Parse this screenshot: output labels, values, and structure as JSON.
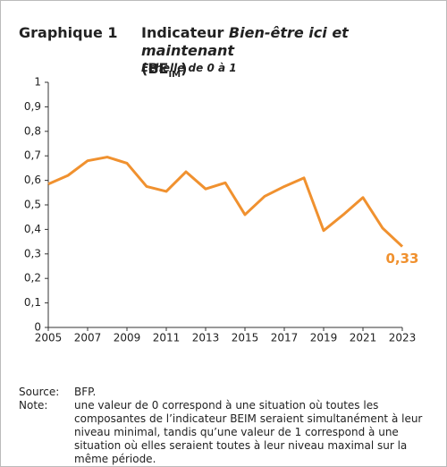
{
  "chart_data": {
    "type": "line",
    "label": "Graphique 1",
    "title_parts": [
      "Indicateur ",
      "Bien-être ici et maintenant",
      "(BE",
      "IM",
      ")"
    ],
    "subtitle": "Echelle de 0 à 1",
    "x": [
      2005,
      2006,
      2007,
      2008,
      2009,
      2010,
      2011,
      2012,
      2013,
      2014,
      2015,
      2016,
      2017,
      2018,
      2019,
      2020,
      2021,
      2022,
      2023
    ],
    "values": [
      0.585,
      0.62,
      0.68,
      0.695,
      0.67,
      0.575,
      0.555,
      0.635,
      0.565,
      0.59,
      0.46,
      0.535,
      0.575,
      0.61,
      0.395,
      0.46,
      0.53,
      0.405,
      0.33
    ],
    "value_labels": [
      null,
      null,
      null,
      null,
      null,
      null,
      null,
      null,
      null,
      null,
      null,
      null,
      null,
      null,
      null,
      null,
      null,
      null,
      "0,33"
    ],
    "color": "#f0912f",
    "xlim": [
      2005,
      2023
    ],
    "xticks": [
      2005,
      2007,
      2009,
      2011,
      2013,
      2015,
      2017,
      2019,
      2021,
      2023
    ],
    "ylim": [
      0,
      1
    ],
    "yticks": [
      0,
      {
        "value": 0.1,
        "label": "0,1"
      },
      {
        "value": 0.2,
        "label": "0,2"
      },
      {
        "value": 0.3,
        "label": "0,3"
      },
      {
        "value": 0.4,
        "label": "0,4"
      },
      {
        "value": 0.5,
        "label": "0,5"
      },
      {
        "value": 0.6,
        "label": "0,6"
      },
      {
        "value": 0.7,
        "label": "0,7"
      },
      {
        "value": 0.8,
        "label": "0,8"
      },
      {
        "value": 0.9,
        "label": "0,9"
      },
      1
    ],
    "grid": false,
    "notes": [
      {
        "label": "Source:",
        "text": "BFP."
      },
      {
        "label": "Note:",
        "text": "une valeur de 0 correspond à une situation où toutes les composantes de l’indicateur BEIM seraient simultanément à leur niveau minimal, tandis qu’une valeur de 1 correspond à une situation où elles seraient toutes à leur niveau maximal sur la même période."
      }
    ]
  }
}
